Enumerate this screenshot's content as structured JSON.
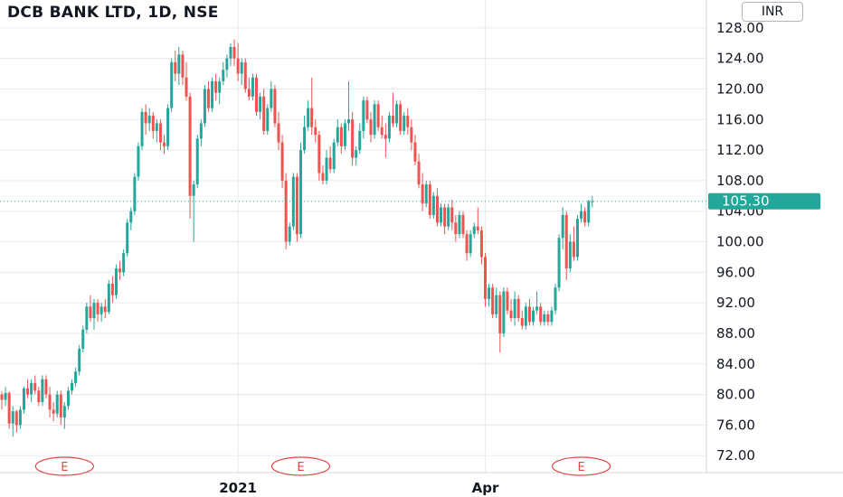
{
  "header": {
    "title": "DCB BANK LTD, 1D, NSE",
    "currency": "INR"
  },
  "colors": {
    "up": "#26a69a",
    "down": "#ef5350",
    "last_price": "#22a89a",
    "grid": "#e8eaf0",
    "event": "#e04848"
  },
  "chart_data": {
    "type": "candlestick",
    "title": "DCB BANK LTD, 1D, NSE",
    "currency": "INR",
    "ylim": [
      68.0,
      132.0
    ],
    "y_ticks": [
      "72.00",
      "76.00",
      "80.00",
      "84.00",
      "88.00",
      "92.00",
      "96.00",
      "100.00",
      "104.00",
      "108.00",
      "112.00",
      "116.00",
      "120.00",
      "124.00",
      "128.00"
    ],
    "x_labels": [
      {
        "label": "2021",
        "bar_index": 64
      },
      {
        "label": "Apr",
        "bar_index": 131
      }
    ],
    "last_price": 105.3,
    "last_price_label": "105.30",
    "event_markers": [
      {
        "label": "E",
        "bar_index": 17
      },
      {
        "label": "E",
        "bar_index": 81
      },
      {
        "label": "E",
        "bar_index": 157
      }
    ],
    "series": [
      {
        "values": [
          [
            80.0,
            80.4,
            78.0,
            79.3
          ],
          [
            79.3,
            81.0,
            78.5,
            80.2
          ],
          [
            80.2,
            80.4,
            75.5,
            76.2
          ],
          [
            76.2,
            78.5,
            74.5,
            77.8
          ],
          [
            77.8,
            78.0,
            75.0,
            76.0
          ],
          [
            76.0,
            78.5,
            75.5,
            78.0
          ],
          [
            78.0,
            81.0,
            77.5,
            80.8
          ],
          [
            80.8,
            82.0,
            79.5,
            80.0
          ],
          [
            80.0,
            82.0,
            79.0,
            81.5
          ],
          [
            81.5,
            82.5,
            80.0,
            80.5
          ],
          [
            80.5,
            81.0,
            78.5,
            79.0
          ],
          [
            79.0,
            82.5,
            78.5,
            82.0
          ],
          [
            82.0,
            82.5,
            79.5,
            80.0
          ],
          [
            80.0,
            81.0,
            77.0,
            78.0
          ],
          [
            78.0,
            79.0,
            76.5,
            77.5
          ],
          [
            77.5,
            80.5,
            77.0,
            80.0
          ],
          [
            80.0,
            80.5,
            76.0,
            77.0
          ],
          [
            77.0,
            79.0,
            75.5,
            78.5
          ],
          [
            78.5,
            81.0,
            78.0,
            80.5
          ],
          [
            80.5,
            82.0,
            80.0,
            81.5
          ],
          [
            81.5,
            83.5,
            81.0,
            83.0
          ],
          [
            83.0,
            86.5,
            82.5,
            86.0
          ],
          [
            86.0,
            89.0,
            85.5,
            88.5
          ],
          [
            88.5,
            92.0,
            88.0,
            91.5
          ],
          [
            91.5,
            93.0,
            89.5,
            90.0
          ],
          [
            90.0,
            92.5,
            88.5,
            92.0
          ],
          [
            92.0,
            92.5,
            89.5,
            90.5
          ],
          [
            90.5,
            92.0,
            89.5,
            91.5
          ],
          [
            91.5,
            92.5,
            90.0,
            90.8
          ],
          [
            90.8,
            95.0,
            90.5,
            94.5
          ],
          [
            94.5,
            95.5,
            92.0,
            93.0
          ],
          [
            93.0,
            97.0,
            92.5,
            96.5
          ],
          [
            96.5,
            97.5,
            95.0,
            96.0
          ],
          [
            96.0,
            99.0,
            95.5,
            98.5
          ],
          [
            98.5,
            103.0,
            98.0,
            102.5
          ],
          [
            102.5,
            104.5,
            101.5,
            104.0
          ],
          [
            104.0,
            109.0,
            103.5,
            108.5
          ],
          [
            108.5,
            113.0,
            108.0,
            112.5
          ],
          [
            112.5,
            117.5,
            112.0,
            117.0
          ],
          [
            117.0,
            118.0,
            114.0,
            115.5
          ],
          [
            115.5,
            117.5,
            114.5,
            116.5
          ],
          [
            116.5,
            117.0,
            113.5,
            114.5
          ],
          [
            114.5,
            116.0,
            113.0,
            115.5
          ],
          [
            115.5,
            116.0,
            112.0,
            113.0
          ],
          [
            113.0,
            114.0,
            111.5,
            112.5
          ],
          [
            112.5,
            118.0,
            112.0,
            117.5
          ],
          [
            117.5,
            124.0,
            117.0,
            123.5
          ],
          [
            123.5,
            125.0,
            121.0,
            122.0
          ],
          [
            122.0,
            125.5,
            120.5,
            124.5
          ],
          [
            124.5,
            125.0,
            120.5,
            121.5
          ],
          [
            121.5,
            123.5,
            118.5,
            119.0
          ],
          [
            119.0,
            119.5,
            103.0,
            106.0
          ],
          [
            106.0,
            108.0,
            100.0,
            107.5
          ],
          [
            107.5,
            114.0,
            107.0,
            113.5
          ],
          [
            113.5,
            116.0,
            112.5,
            115.5
          ],
          [
            115.5,
            120.5,
            115.0,
            120.0
          ],
          [
            120.0,
            121.0,
            117.0,
            117.5
          ],
          [
            117.5,
            121.5,
            117.0,
            121.0
          ],
          [
            121.0,
            122.0,
            118.5,
            119.5
          ],
          [
            119.5,
            121.5,
            118.0,
            121.0
          ],
          [
            121.0,
            123.5,
            120.5,
            122.5
          ],
          [
            122.5,
            124.5,
            121.5,
            124.0
          ],
          [
            124.0,
            126.0,
            123.0,
            125.5
          ],
          [
            125.5,
            126.5,
            123.0,
            124.0
          ],
          [
            124.0,
            126.0,
            121.0,
            122.0
          ],
          [
            122.0,
            124.0,
            120.5,
            123.5
          ],
          [
            123.5,
            124.0,
            119.5,
            120.0
          ],
          [
            120.0,
            121.5,
            118.5,
            119.0
          ],
          [
            119.0,
            122.0,
            118.5,
            121.5
          ],
          [
            121.5,
            122.0,
            116.5,
            117.0
          ],
          [
            117.0,
            119.5,
            116.0,
            119.0
          ],
          [
            119.0,
            120.0,
            114.0,
            114.5
          ],
          [
            114.5,
            118.0,
            114.0,
            117.5
          ],
          [
            117.5,
            121.0,
            117.0,
            120.0
          ],
          [
            120.0,
            120.5,
            115.0,
            115.5
          ],
          [
            115.5,
            117.0,
            112.0,
            113.0
          ],
          [
            113.0,
            114.0,
            107.0,
            108.0
          ],
          [
            108.0,
            109.0,
            99.0,
            100.0
          ],
          [
            100.0,
            102.5,
            99.5,
            102.0
          ],
          [
            102.0,
            109.0,
            101.5,
            108.5
          ],
          [
            108.5,
            109.0,
            100.0,
            101.0
          ],
          [
            101.0,
            113.0,
            100.5,
            112.0
          ],
          [
            112.0,
            116.5,
            111.5,
            115.0
          ],
          [
            115.0,
            118.5,
            114.5,
            117.5
          ],
          [
            117.5,
            121.5,
            114.0,
            115.0
          ],
          [
            115.0,
            116.0,
            113.0,
            114.0
          ],
          [
            114.0,
            114.5,
            108.0,
            109.0
          ],
          [
            109.0,
            110.0,
            107.5,
            108.0
          ],
          [
            108.0,
            112.0,
            107.5,
            111.0
          ],
          [
            111.0,
            112.5,
            109.0,
            109.5
          ],
          [
            109.5,
            113.5,
            109.0,
            113.0
          ],
          [
            113.0,
            116.0,
            112.5,
            115.0
          ],
          [
            115.0,
            115.5,
            111.5,
            112.5
          ],
          [
            112.5,
            116.0,
            112.0,
            115.5
          ],
          [
            115.5,
            121.0,
            114.5,
            116.0
          ],
          [
            116.0,
            117.0,
            110.0,
            111.0
          ],
          [
            111.0,
            112.5,
            110.0,
            112.0
          ],
          [
            112.0,
            115.5,
            111.5,
            114.5
          ],
          [
            114.5,
            119.0,
            113.5,
            118.5
          ],
          [
            118.5,
            119.0,
            115.5,
            116.0
          ],
          [
            116.0,
            117.0,
            113.0,
            114.0
          ],
          [
            114.0,
            118.5,
            113.5,
            118.0
          ],
          [
            118.0,
            118.5,
            114.5,
            115.0
          ],
          [
            115.0,
            116.5,
            113.5,
            114.0
          ],
          [
            114.0,
            115.5,
            111.0,
            113.5
          ],
          [
            113.5,
            117.0,
            113.0,
            116.5
          ],
          [
            116.5,
            119.5,
            115.0,
            115.5
          ],
          [
            115.5,
            118.5,
            115.0,
            118.0
          ],
          [
            118.0,
            118.5,
            114.0,
            114.5
          ],
          [
            114.5,
            117.0,
            114.0,
            116.5
          ],
          [
            116.5,
            117.5,
            114.0,
            115.0
          ],
          [
            115.0,
            116.0,
            112.0,
            113.0
          ],
          [
            113.0,
            114.0,
            110.0,
            110.5
          ],
          [
            110.5,
            111.5,
            107.0,
            107.5
          ],
          [
            107.5,
            109.0,
            104.0,
            105.0
          ],
          [
            105.0,
            108.0,
            104.5,
            107.5
          ],
          [
            107.5,
            108.0,
            103.0,
            103.5
          ],
          [
            103.5,
            106.5,
            103.0,
            106.0
          ],
          [
            106.0,
            107.0,
            102.0,
            102.5
          ],
          [
            102.5,
            105.0,
            102.0,
            104.5
          ],
          [
            104.5,
            105.0,
            101.0,
            102.0
          ],
          [
            102.0,
            105.0,
            101.5,
            104.5
          ],
          [
            104.5,
            105.5,
            101.5,
            102.5
          ],
          [
            102.5,
            103.5,
            100.0,
            101.0
          ],
          [
            101.0,
            104.0,
            100.5,
            103.5
          ],
          [
            103.5,
            104.0,
            100.5,
            101.0
          ],
          [
            101.0,
            101.5,
            97.5,
            98.5
          ],
          [
            98.5,
            101.5,
            98.0,
            101.0
          ],
          [
            101.0,
            102.5,
            100.5,
            102.0
          ],
          [
            102.0,
            104.5,
            101.0,
            101.5
          ],
          [
            101.5,
            102.0,
            97.0,
            98.0
          ],
          [
            98.0,
            98.5,
            91.5,
            92.5
          ],
          [
            92.5,
            94.5,
            91.5,
            94.0
          ],
          [
            94.0,
            94.5,
            90.0,
            90.5
          ],
          [
            90.5,
            94.0,
            90.0,
            93.0
          ],
          [
            93.0,
            93.5,
            85.5,
            88.0
          ],
          [
            88.0,
            94.0,
            87.5,
            93.5
          ],
          [
            93.5,
            94.0,
            90.5,
            91.0
          ],
          [
            91.0,
            92.5,
            89.5,
            90.0
          ],
          [
            90.0,
            93.5,
            89.0,
            92.5
          ],
          [
            92.5,
            93.0,
            89.5,
            90.0
          ],
          [
            90.0,
            91.0,
            88.5,
            89.0
          ],
          [
            89.0,
            92.0,
            88.5,
            91.5
          ],
          [
            91.5,
            92.5,
            89.0,
            89.5
          ],
          [
            89.5,
            91.5,
            89.0,
            91.0
          ],
          [
            91.0,
            93.5,
            90.5,
            91.5
          ],
          [
            91.5,
            92.0,
            89.0,
            89.5
          ],
          [
            89.5,
            91.0,
            89.0,
            90.5
          ],
          [
            90.5,
            91.0,
            89.0,
            89.5
          ],
          [
            89.5,
            91.5,
            89.0,
            91.0
          ],
          [
            91.0,
            94.5,
            90.5,
            94.0
          ],
          [
            94.0,
            101.0,
            93.5,
            100.5
          ],
          [
            100.5,
            104.5,
            99.0,
            103.5
          ],
          [
            103.5,
            104.0,
            95.0,
            96.5
          ],
          [
            96.5,
            101.0,
            96.0,
            100.0
          ],
          [
            100.0,
            102.0,
            97.5,
            98.0
          ],
          [
            98.0,
            103.5,
            97.5,
            103.0
          ],
          [
            103.0,
            105.0,
            102.5,
            104.0
          ],
          [
            104.0,
            104.5,
            102.0,
            102.5
          ],
          [
            102.5,
            105.5,
            102.0,
            105.3
          ],
          [
            105.3,
            106.0,
            104.5,
            105.3
          ]
        ]
      }
    ]
  }
}
